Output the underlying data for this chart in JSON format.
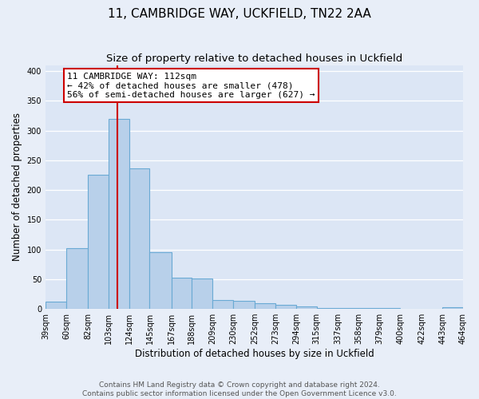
{
  "title": "11, CAMBRIDGE WAY, UCKFIELD, TN22 2AA",
  "subtitle": "Size of property relative to detached houses in Uckfield",
  "xlabel": "Distribution of detached houses by size in Uckfield",
  "ylabel": "Number of detached properties",
  "bar_edges": [
    39,
    60,
    82,
    103,
    124,
    145,
    167,
    188,
    209,
    230,
    252,
    273,
    294,
    315,
    337,
    358,
    379,
    400,
    422,
    443,
    464
  ],
  "bar_heights": [
    12,
    102,
    225,
    320,
    237,
    96,
    53,
    51,
    15,
    14,
    9,
    7,
    4,
    2,
    2,
    2,
    1,
    0,
    0,
    3
  ],
  "bar_color": "#b8d0ea",
  "bar_edge_color": "#6aaad4",
  "property_line_x": 112,
  "annotation_title": "11 CAMBRIDGE WAY: 112sqm",
  "annotation_line1": "← 42% of detached houses are smaller (478)",
  "annotation_line2": "56% of semi-detached houses are larger (627) →",
  "annotation_box_color": "#ffffff",
  "annotation_box_edge": "#cc0000",
  "property_line_color": "#cc0000",
  "ylim": [
    0,
    410
  ],
  "tick_labels": [
    "39sqm",
    "60sqm",
    "82sqm",
    "103sqm",
    "124sqm",
    "145sqm",
    "167sqm",
    "188sqm",
    "209sqm",
    "230sqm",
    "252sqm",
    "273sqm",
    "294sqm",
    "315sqm",
    "337sqm",
    "358sqm",
    "379sqm",
    "400sqm",
    "422sqm",
    "443sqm",
    "464sqm"
  ],
  "footer_line1": "Contains HM Land Registry data © Crown copyright and database right 2024.",
  "footer_line2": "Contains public sector information licensed under the Open Government Licence v3.0.",
  "background_color": "#e8eef8",
  "plot_bg_color": "#dce6f5",
  "grid_color": "#ffffff",
  "title_fontsize": 11,
  "subtitle_fontsize": 9.5,
  "axis_label_fontsize": 8.5,
  "tick_fontsize": 7,
  "footer_fontsize": 6.5,
  "annotation_fontsize": 8
}
